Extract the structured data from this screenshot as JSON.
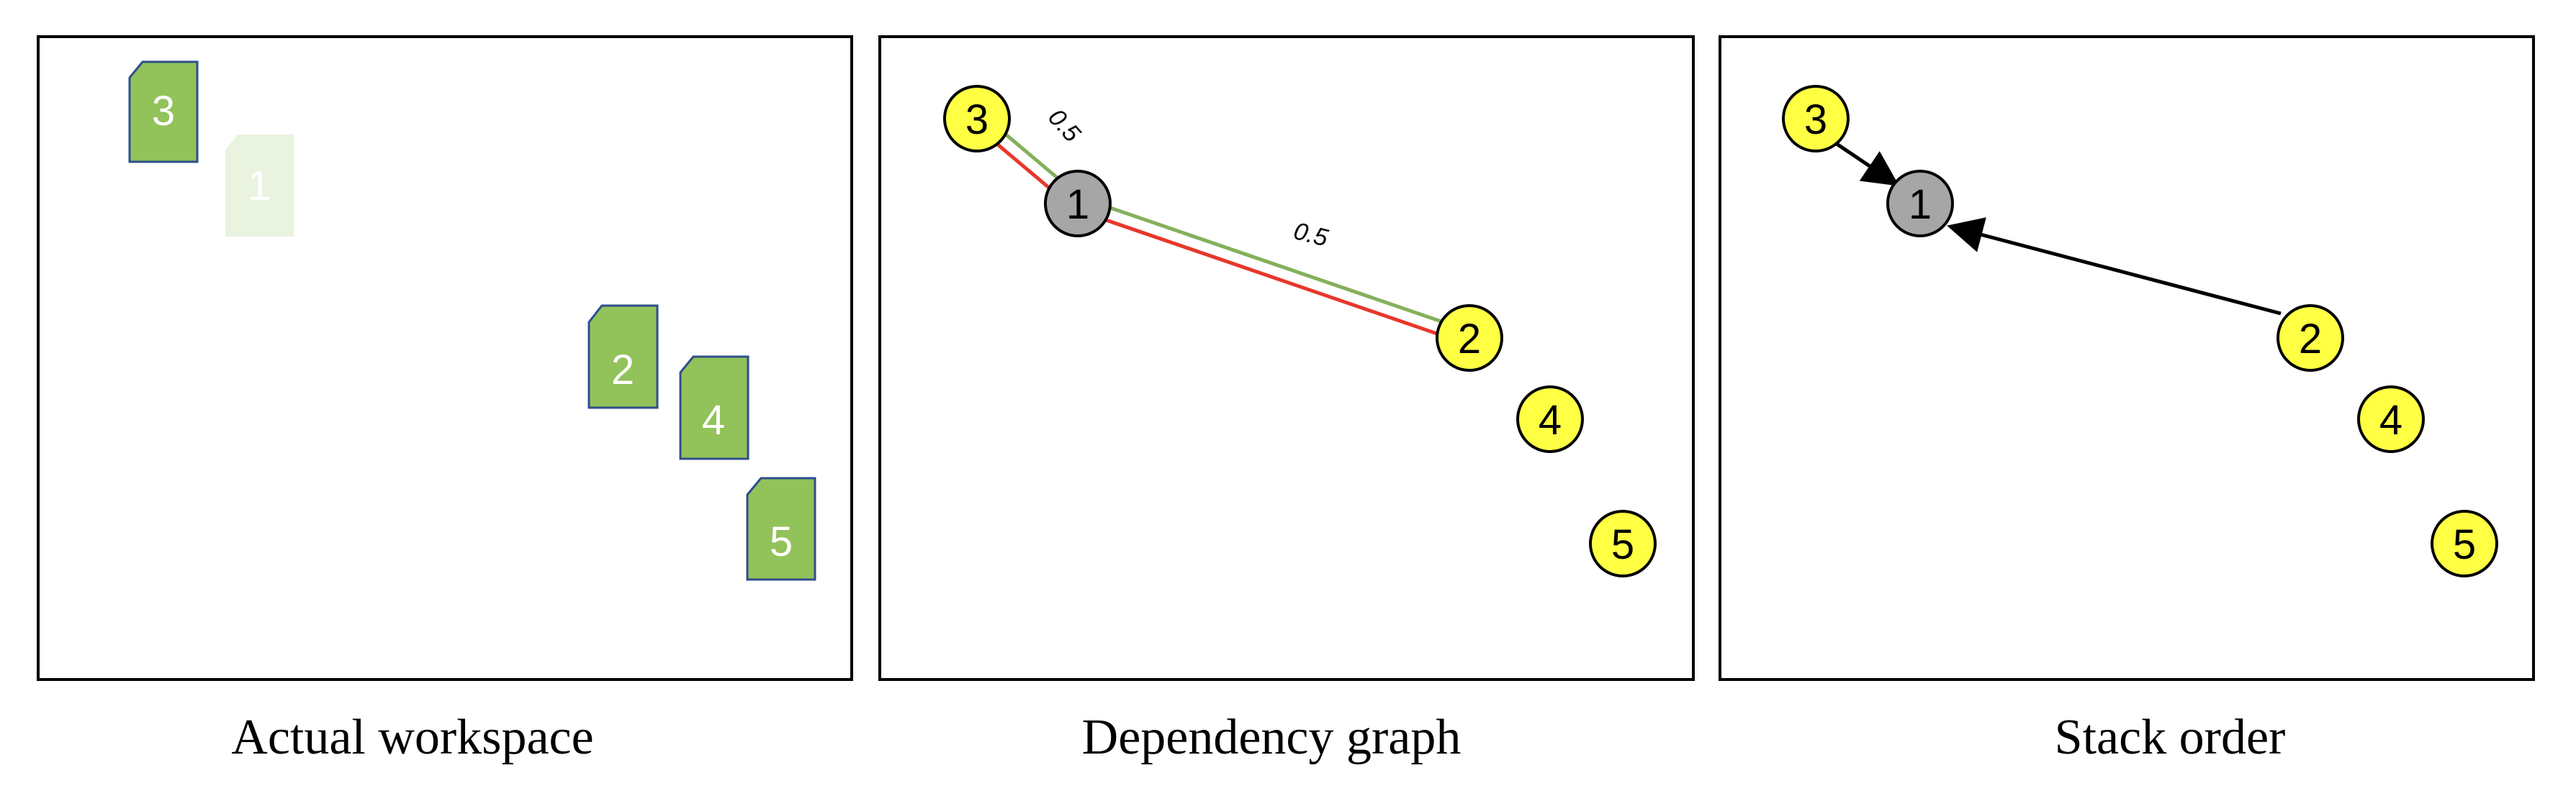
{
  "panels": [
    {
      "caption": "Actual workspace",
      "objects": [
        {
          "label": "3",
          "style": "normal"
        },
        {
          "label": "1",
          "style": "faded"
        },
        {
          "label": "2",
          "style": "normal"
        },
        {
          "label": "4",
          "style": "normal"
        },
        {
          "label": "5",
          "style": "normal"
        }
      ]
    },
    {
      "caption": "Dependency graph",
      "nodes": [
        {
          "label": "3",
          "style": "yellow"
        },
        {
          "label": "1",
          "style": "gray"
        },
        {
          "label": "2",
          "style": "yellow"
        },
        {
          "label": "4",
          "style": "yellow"
        },
        {
          "label": "5",
          "style": "yellow"
        }
      ],
      "edges": [
        {
          "from": "3",
          "to": "1",
          "color": "green",
          "label": "0.5"
        },
        {
          "from": "3",
          "to": "1",
          "color": "red",
          "label": ""
        },
        {
          "from": "1",
          "to": "2",
          "color": "green",
          "label": "0.5"
        },
        {
          "from": "1",
          "to": "2",
          "color": "red",
          "label": ""
        }
      ]
    },
    {
      "caption": "Stack order",
      "nodes": [
        {
          "label": "3",
          "style": "yellow"
        },
        {
          "label": "1",
          "style": "gray"
        },
        {
          "label": "2",
          "style": "yellow"
        },
        {
          "label": "4",
          "style": "yellow"
        },
        {
          "label": "5",
          "style": "yellow"
        }
      ],
      "arrows": [
        {
          "from": "3",
          "to": "1"
        },
        {
          "from": "2",
          "to": "1"
        }
      ]
    }
  ],
  "colors": {
    "box_fill": "#92c25a",
    "box_stroke": "#2e4e8c",
    "faded_box_fill": "#e9f3df",
    "node_yellow": "#ffff44",
    "node_gray": "#a6a6a6",
    "edge_green": "#84b05a",
    "edge_red": "#e8372b",
    "arrow": "#000000"
  }
}
